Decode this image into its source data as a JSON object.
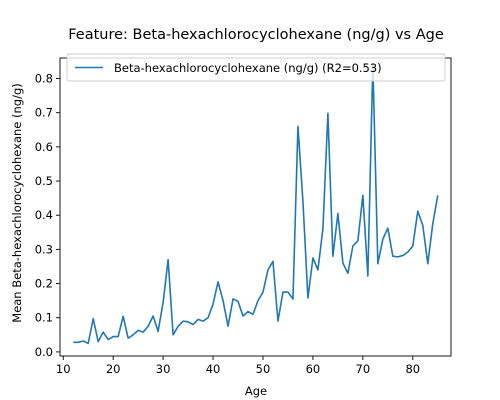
{
  "chart_data": {
    "type": "line",
    "title": "Feature: Beta-hexachlorocyclohexane (ng/g) vs Age",
    "xlabel": "Age",
    "ylabel": "Mean Beta-hexachlorocyclohexane (ng/g)",
    "xlim": [
      9.35,
      87.65
    ],
    "ylim": [
      -0.012,
      0.86
    ],
    "xticks": [
      10,
      20,
      30,
      40,
      50,
      60,
      70,
      80
    ],
    "yticks": [
      0.0,
      0.1,
      0.2,
      0.3,
      0.4,
      0.5,
      0.6,
      0.7,
      0.8
    ],
    "ytick_labels": [
      "0.0",
      "0.1",
      "0.2",
      "0.3",
      "0.4",
      "0.5",
      "0.6",
      "0.7",
      "0.8"
    ],
    "grid": false,
    "legend": {
      "position": "upper-left",
      "entries": [
        "Beta-hexachlorocyclohexane (ng/g) (R2=0.53)"
      ]
    },
    "series": [
      {
        "name": "Beta-hexachlorocyclohexane (ng/g) (R2=0.53)",
        "color": "#1f77b4",
        "x": [
          12,
          13,
          14,
          15,
          16,
          17,
          18,
          19,
          20,
          21,
          22,
          23,
          24,
          25,
          26,
          27,
          28,
          29,
          30,
          31,
          32,
          33,
          34,
          35,
          36,
          37,
          38,
          39,
          40,
          41,
          42,
          43,
          44,
          45,
          46,
          47,
          48,
          49,
          50,
          51,
          52,
          53,
          54,
          55,
          56,
          57,
          58,
          59,
          60,
          61,
          62,
          63,
          64,
          65,
          66,
          67,
          68,
          69,
          70,
          71,
          72,
          73,
          74,
          75,
          76,
          77,
          78,
          79,
          80,
          81,
          82,
          83,
          84,
          85
        ],
        "y": [
          0.028,
          0.028,
          0.032,
          0.025,
          0.097,
          0.03,
          0.058,
          0.036,
          0.045,
          0.045,
          0.104,
          0.04,
          0.05,
          0.063,
          0.058,
          0.075,
          0.105,
          0.06,
          0.145,
          0.27,
          0.05,
          0.075,
          0.09,
          0.088,
          0.08,
          0.095,
          0.09,
          0.1,
          0.14,
          0.205,
          0.15,
          0.075,
          0.155,
          0.148,
          0.105,
          0.118,
          0.11,
          0.15,
          0.175,
          0.24,
          0.265,
          0.09,
          0.175,
          0.175,
          0.155,
          0.66,
          0.44,
          0.158,
          0.275,
          0.24,
          0.36,
          0.698,
          0.28,
          0.405,
          0.26,
          0.23,
          0.31,
          0.325,
          0.458,
          0.222,
          0.845,
          0.258,
          0.33,
          0.362,
          0.28,
          0.278,
          0.282,
          0.292,
          0.31,
          0.412,
          0.37,
          0.258,
          0.375,
          0.458
        ]
      }
    ]
  }
}
